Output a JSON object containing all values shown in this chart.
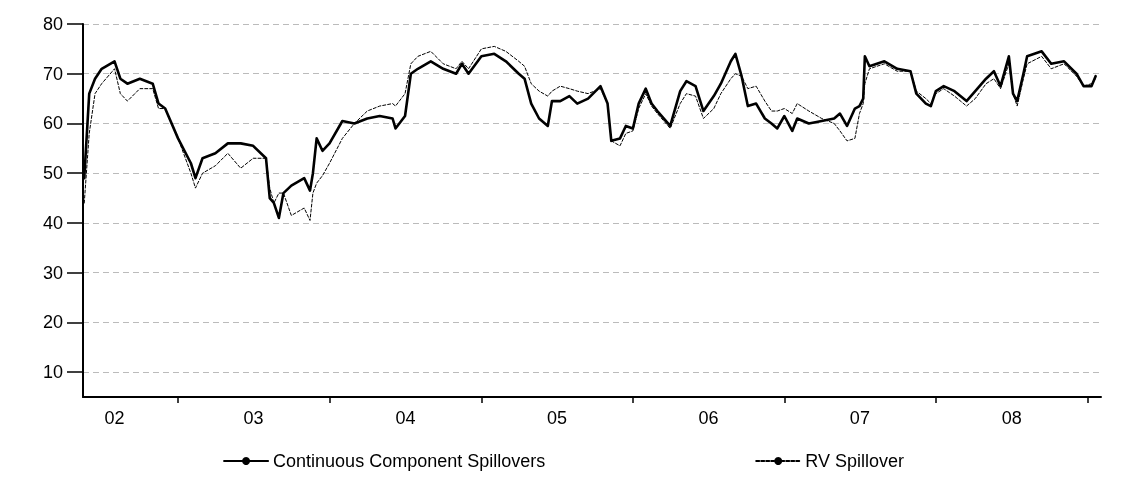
{
  "chart_data": {
    "type": "line",
    "x": [
      "2002-05-20",
      "2002-06-01",
      "2002-06-15",
      "2002-07-01",
      "2002-08-01",
      "2002-08-15",
      "2002-09-01",
      "2002-10-01",
      "2002-11-01",
      "2002-11-15",
      "2002-12-01",
      "2003-01-01",
      "2003-02-01",
      "2003-02-12",
      "2003-03-01",
      "2003-04-01",
      "2003-05-01",
      "2003-06-01",
      "2003-07-01",
      "2003-08-01",
      "2003-08-10",
      "2003-08-20",
      "2003-09-01",
      "2003-09-12",
      "2003-10-01",
      "2003-11-01",
      "2003-11-15",
      "2003-11-22",
      "2003-12-01",
      "2003-12-15",
      "2004-01-01",
      "2004-02-01",
      "2004-03-01",
      "2004-04-01",
      "2004-05-01",
      "2004-06-01",
      "2004-06-08",
      "2004-07-01",
      "2004-07-15",
      "2004-08-01",
      "2004-09-01",
      "2004-10-01",
      "2004-11-01",
      "2004-11-15",
      "2004-12-01",
      "2005-01-01",
      "2005-02-01",
      "2005-03-01",
      "2005-04-01",
      "2005-04-15",
      "2005-05-01",
      "2005-05-20",
      "2005-06-10",
      "2005-06-20",
      "2005-07-10",
      "2005-08-01",
      "2005-08-20",
      "2005-09-15",
      "2005-10-15",
      "2005-11-01",
      "2005-11-10",
      "2005-12-01",
      "2005-12-15",
      "2006-01-01",
      "2006-01-15",
      "2006-02-01",
      "2006-02-15",
      "2006-03-01",
      "2006-04-01",
      "2006-04-25",
      "2006-05-10",
      "2006-06-01",
      "2006-06-20",
      "2006-07-15",
      "2006-08-01",
      "2006-08-25",
      "2006-09-05",
      "2006-09-20",
      "2006-10-05",
      "2006-10-25",
      "2006-11-15",
      "2006-12-01",
      "2006-12-15",
      "2007-01-01",
      "2007-01-20",
      "2007-02-01",
      "2007-03-01",
      "2007-04-01",
      "2007-05-01",
      "2007-05-15",
      "2007-06-01",
      "2007-06-20",
      "2007-07-01",
      "2007-07-10",
      "2007-07-14",
      "2007-07-25",
      "2007-08-30",
      "2007-09-30",
      "2007-11-01",
      "2007-11-15",
      "2007-12-08",
      "2007-12-20",
      "2008-01-01",
      "2008-01-20",
      "2008-02-15",
      "2008-03-15",
      "2008-04-05",
      "2008-05-01",
      "2008-05-20",
      "2008-06-05",
      "2008-06-25",
      "2008-07-05",
      "2008-07-15",
      "2008-07-30",
      "2008-08-08",
      "2008-09-12",
      "2008-10-05",
      "2008-11-05",
      "2008-12-05",
      "2008-12-22",
      "2009-01-10",
      "2009-01-20"
    ],
    "series": [
      {
        "name": "Continuous Component Spillovers",
        "color": "#000000",
        "line_style": "solid",
        "values": [
          49,
          66,
          69,
          71,
          72.5,
          69,
          68,
          69,
          68,
          64,
          63,
          57,
          52,
          49,
          53,
          54,
          56,
          56,
          55.5,
          53,
          45,
          44,
          41,
          46,
          47.5,
          49,
          46.5,
          50,
          57,
          54.5,
          56,
          60.5,
          60,
          61,
          61.5,
          61,
          59,
          61.5,
          70,
          71,
          72.5,
          71,
          70,
          72,
          70,
          73.5,
          74,
          72.5,
          70,
          69,
          64,
          61,
          59.5,
          64.5,
          64.5,
          65.5,
          64,
          65,
          67.5,
          64,
          56.5,
          57,
          59.5,
          59,
          64,
          67,
          64,
          62.5,
          59.5,
          66.5,
          68.5,
          67.5,
          62.5,
          65.5,
          68,
          72.5,
          74,
          69.5,
          63.5,
          64,
          61,
          60,
          59,
          61.5,
          58.5,
          61,
          60,
          60.5,
          61,
          62,
          59.5,
          63,
          63.5,
          65,
          73.5,
          71.5,
          72.5,
          71,
          70.5,
          66,
          64,
          63.5,
          66.5,
          67.5,
          66.5,
          64.5,
          66.5,
          69,
          70.5,
          67.5,
          73.5,
          66,
          64.5,
          70,
          73.5,
          74.5,
          72,
          72.5,
          70,
          67.5,
          67.5,
          69.5
        ]
      },
      {
        "name": "RV Spillover",
        "color": "#000000",
        "line_style": "dashed",
        "values": [
          44,
          58,
          66,
          68,
          71,
          66,
          64.5,
          67,
          67,
          63,
          63,
          57,
          50,
          47,
          50,
          51.5,
          54,
          51,
          53,
          53,
          47,
          44,
          46,
          46,
          41.5,
          43,
          40.5,
          46,
          48,
          49.5,
          52,
          57,
          60,
          62.5,
          63.5,
          64,
          63.5,
          66,
          72,
          73.5,
          74.5,
          72,
          71,
          72.5,
          71,
          75,
          75.5,
          74.5,
          72.5,
          71.5,
          68,
          66.5,
          65.5,
          66.5,
          67.5,
          67,
          66.5,
          66,
          67,
          64,
          56.5,
          55.5,
          58,
          58.5,
          63,
          66,
          63.5,
          62,
          59,
          64,
          66,
          65.5,
          61,
          63,
          66,
          69,
          70,
          69.5,
          67,
          67.5,
          64.5,
          62.5,
          62.5,
          63,
          62,
          64,
          62.5,
          61,
          60,
          58.5,
          56.5,
          57,
          62,
          64,
          68,
          71,
          72,
          70.5,
          70.5,
          66.5,
          65,
          64,
          66,
          67,
          65.5,
          63.5,
          65,
          68,
          69,
          67,
          72,
          66,
          63.5,
          69,
          72,
          73.5,
          71,
          72,
          69.5,
          67.5,
          68,
          69
        ]
      }
    ],
    "xlim": [
      "2002-05-17",
      "2009-02-02"
    ],
    "xticks": [
      {
        "value": "2002-08-01",
        "label": "02"
      },
      {
        "value": "2003-01-01",
        "label": null
      },
      {
        "value": "2003-07-02",
        "label": "03"
      },
      {
        "value": "2004-01-01",
        "label": null
      },
      {
        "value": "2004-07-02",
        "label": "04"
      },
      {
        "value": "2005-01-01",
        "label": null
      },
      {
        "value": "2005-07-02",
        "label": "05"
      },
      {
        "value": "2006-01-01",
        "label": null
      },
      {
        "value": "2006-07-02",
        "label": "06"
      },
      {
        "value": "2007-01-01",
        "label": null
      },
      {
        "value": "2007-07-02",
        "label": "07"
      },
      {
        "value": "2008-01-01",
        "label": null
      },
      {
        "value": "2008-07-02",
        "label": "08"
      },
      {
        "value": "2009-01-01",
        "label": null
      }
    ],
    "ylim": [
      5,
      80
    ],
    "yticks": [
      10,
      20,
      30,
      40,
      50,
      60,
      70,
      80
    ],
    "grid": "y",
    "legend": "bottom",
    "marker": "none"
  }
}
